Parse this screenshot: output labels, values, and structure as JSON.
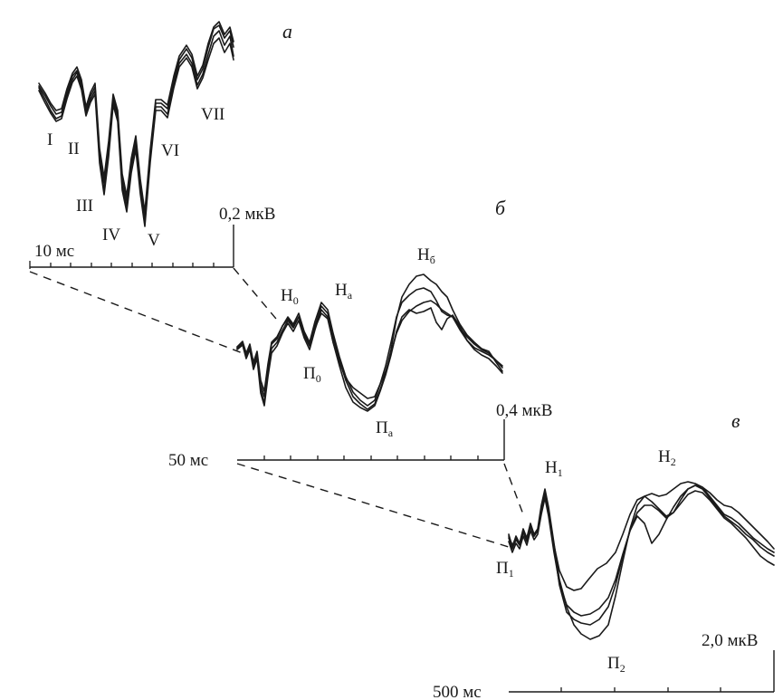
{
  "panels": {
    "a": {
      "letter": "а",
      "time_label": "10 мс",
      "amp_label": "0,2 мкВ",
      "peaks": [
        "I",
        "II",
        "III",
        "IV",
        "V",
        "VI",
        "VII"
      ]
    },
    "b": {
      "letter": "б",
      "time_label": "50 мс",
      "amp_label": "0,4 мкВ",
      "peaks": {
        "N0": {
          "main": "Н",
          "sub": "0"
        },
        "Na": {
          "main": "Н",
          "sub": "а"
        },
        "Nb": {
          "main": "Н",
          "sub": "б"
        },
        "P0": {
          "main": "П",
          "sub": "0"
        },
        "Pa": {
          "main": "П",
          "sub": "а"
        }
      }
    },
    "c": {
      "letter": "в",
      "time_label": "500 мс",
      "amp_label": "2,0 мкВ",
      "peaks": {
        "N1": {
          "main": "Н",
          "sub": "1"
        },
        "N2": {
          "main": "Н",
          "sub": "2"
        },
        "P1": {
          "main": "П",
          "sub": "1"
        },
        "P2": {
          "main": "П",
          "sub": "2"
        }
      }
    }
  }
}
